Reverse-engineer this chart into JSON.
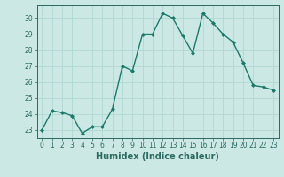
{
  "x": [
    0,
    1,
    2,
    3,
    4,
    5,
    6,
    7,
    8,
    9,
    10,
    11,
    12,
    13,
    14,
    15,
    16,
    17,
    18,
    19,
    20,
    21,
    22,
    23
  ],
  "y": [
    23,
    24.2,
    24.1,
    23.9,
    22.8,
    23.2,
    23.2,
    24.3,
    27.0,
    26.7,
    29.0,
    29.0,
    30.3,
    30.0,
    28.9,
    27.8,
    30.3,
    29.7,
    29.0,
    28.5,
    27.2,
    25.8,
    25.7,
    25.5
  ],
  "line_color": "#1a7a6a",
  "marker": "D",
  "markersize": 2.0,
  "linewidth": 1.0,
  "bg_color": "#cce8e4",
  "grid_color": "#aad4d0",
  "xlabel": "Humidex (Indice chaleur)",
  "ylim": [
    22.5,
    30.8
  ],
  "xlim": [
    -0.5,
    23.5
  ],
  "yticks": [
    23,
    24,
    25,
    26,
    27,
    28,
    29,
    30
  ],
  "xticks": [
    0,
    1,
    2,
    3,
    4,
    5,
    6,
    7,
    8,
    9,
    10,
    11,
    12,
    13,
    14,
    15,
    16,
    17,
    18,
    19,
    20,
    21,
    22,
    23
  ],
  "tick_fontsize": 5.5,
  "xlabel_fontsize": 7.0,
  "tick_color": "#2a6a60",
  "label_color": "#2a6a60"
}
